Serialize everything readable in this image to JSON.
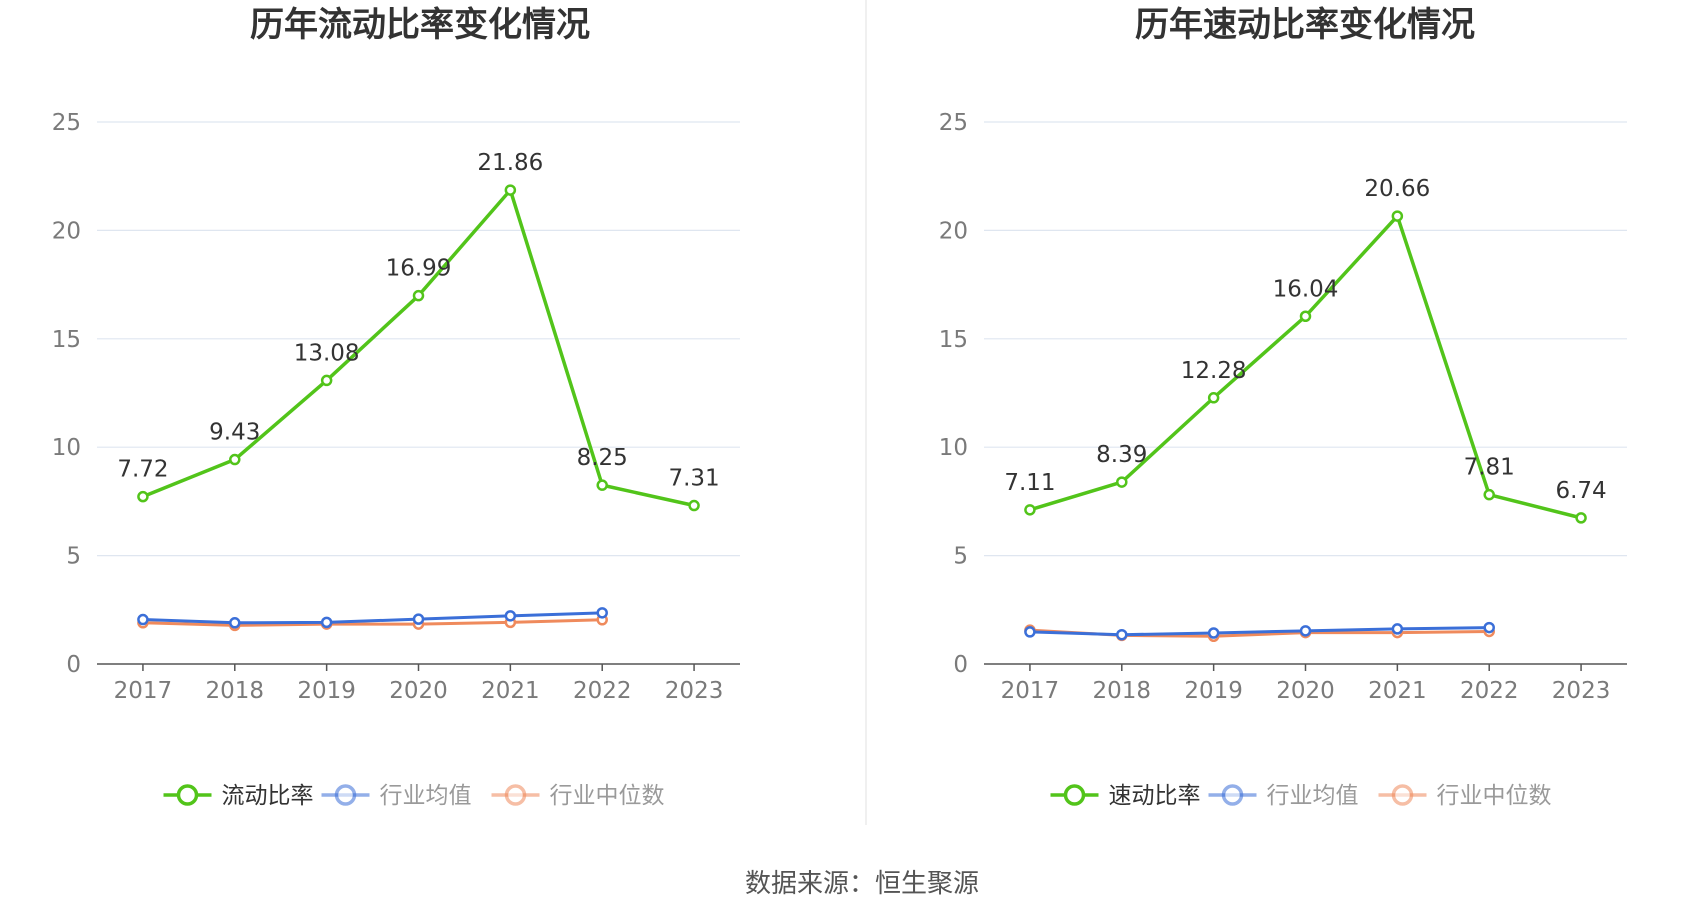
{
  "source": "数据来源：恒生聚源",
  "colors": {
    "main": "#52c41a",
    "avg": "#3b6fd8",
    "median": "#ef8a5c",
    "grid": "#dfe6f0",
    "axis": "#555555"
  },
  "chart_data": [
    {
      "type": "line",
      "title": "历年流动比率变化情况",
      "categories": [
        "2017",
        "2018",
        "2019",
        "2020",
        "2021",
        "2022",
        "2023"
      ],
      "ylim": [
        0,
        25
      ],
      "yticks": [
        0,
        5,
        10,
        15,
        20,
        25
      ],
      "grid": true,
      "legend_position": "bottom",
      "series": [
        {
          "name": "流动比率",
          "color": "#52c41a",
          "values": [
            7.72,
            9.43,
            13.08,
            16.99,
            21.86,
            8.25,
            7.31
          ],
          "labels": [
            "7.72",
            "9.43",
            "13.08",
            "16.99",
            "21.86",
            "8.25",
            "7.31"
          ]
        },
        {
          "name": "行业均值",
          "color": "#3b6fd8",
          "values": [
            2.05,
            1.9,
            1.92,
            2.07,
            2.22,
            2.36,
            null
          ]
        },
        {
          "name": "行业中位数",
          "color": "#ef8a5c",
          "values": [
            1.9,
            1.78,
            1.84,
            1.84,
            1.92,
            2.04,
            null
          ]
        }
      ]
    },
    {
      "type": "line",
      "title": "历年速动比率变化情况",
      "categories": [
        "2017",
        "2018",
        "2019",
        "2020",
        "2021",
        "2022",
        "2023"
      ],
      "ylim": [
        0,
        25
      ],
      "yticks": [
        0,
        5,
        10,
        15,
        20,
        25
      ],
      "grid": true,
      "legend_position": "bottom",
      "series": [
        {
          "name": "速动比率",
          "color": "#52c41a",
          "values": [
            7.11,
            8.39,
            12.28,
            16.04,
            20.66,
            7.81,
            6.74
          ],
          "labels": [
            "7.11",
            "8.39",
            "12.28",
            "16.04",
            "20.66",
            "7.81",
            "6.74"
          ]
        },
        {
          "name": "行业均值",
          "color": "#3b6fd8",
          "values": [
            1.48,
            1.35,
            1.43,
            1.53,
            1.62,
            1.68,
            null
          ]
        },
        {
          "name": "行业中位数",
          "color": "#ef8a5c",
          "values": [
            1.56,
            1.32,
            1.28,
            1.45,
            1.45,
            1.5,
            null
          ]
        }
      ]
    }
  ]
}
